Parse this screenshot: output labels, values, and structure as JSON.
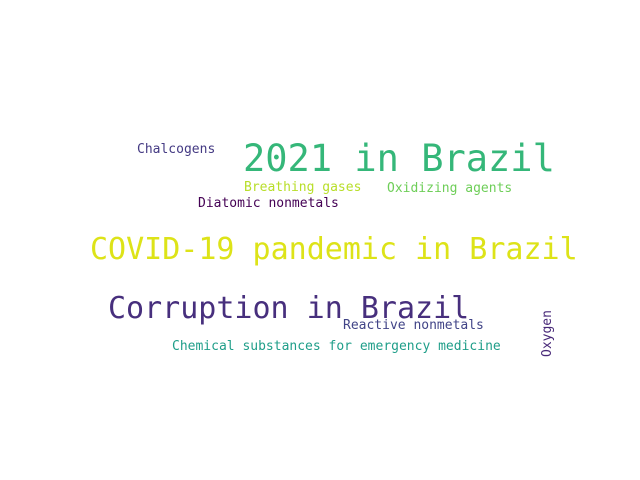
{
  "words": [
    {
      "key": "w2021",
      "text": "2021 in Brazil",
      "color": "#35b779"
    },
    {
      "key": "covid",
      "text": "COVID-19 pandemic in Brazil",
      "color": "#dde318"
    },
    {
      "key": "corruption",
      "text": "Corruption in Brazil",
      "color": "#472f7d"
    },
    {
      "key": "chalcogens",
      "text": "Chalcogens",
      "color": "#443a83"
    },
    {
      "key": "breathing",
      "text": "Breathing gases",
      "color": "#b8de29"
    },
    {
      "key": "oxidizing",
      "text": "Oxidizing agents",
      "color": "#6ece58"
    },
    {
      "key": "diatomic",
      "text": "Diatomic nonmetals",
      "color": "#440154"
    },
    {
      "key": "reactive",
      "text": "Reactive nonmetals",
      "color": "#414487"
    },
    {
      "key": "chemical",
      "text": "Chemical substances for emergency medicine",
      "color": "#1f9e89"
    },
    {
      "key": "oxygen",
      "text": "Oxygen",
      "color": "#482878"
    }
  ]
}
